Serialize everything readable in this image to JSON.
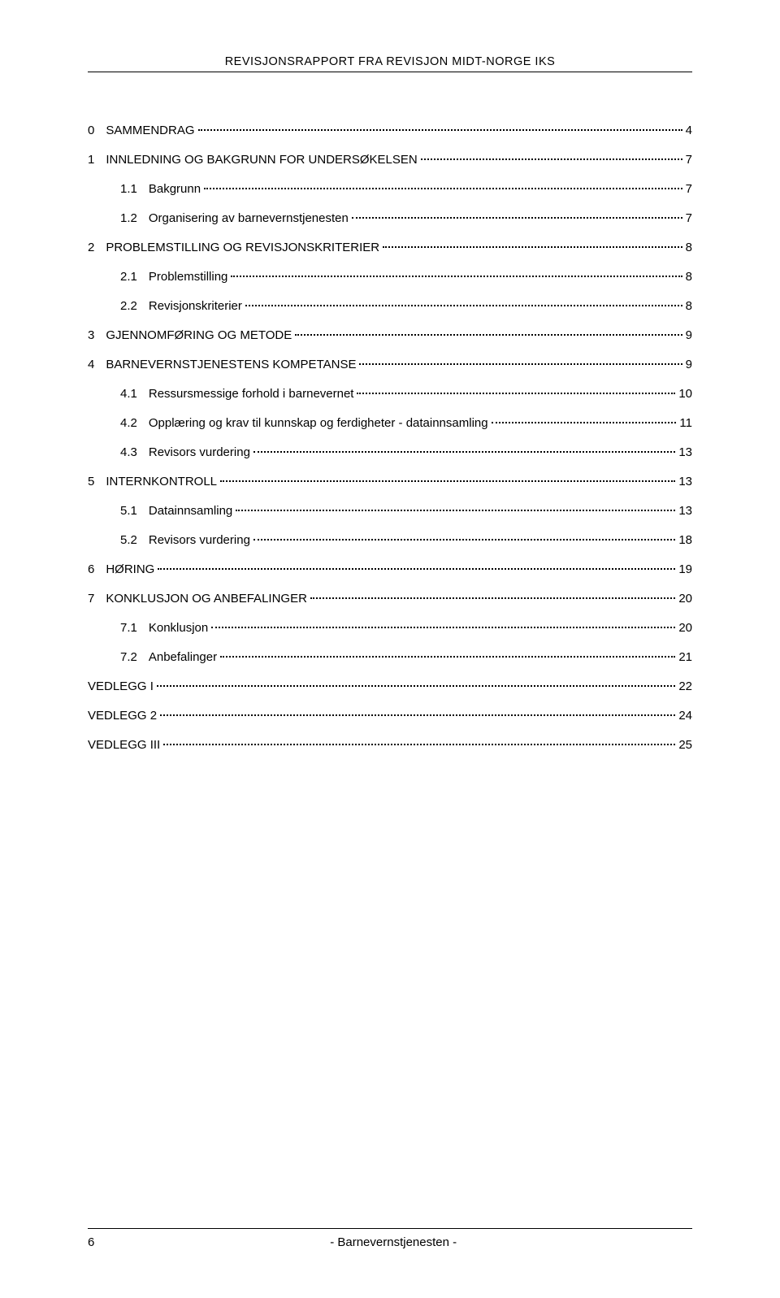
{
  "header": "REVISJONSRAPPORT FRA REVISJON MIDT-NORGE IKS",
  "toc": [
    {
      "level": 0,
      "num": "0",
      "title": "SAMMENDRAG",
      "page": "4"
    },
    {
      "level": 0,
      "num": "1",
      "title": "INNLEDNING OG BAKGRUNN FOR UNDERSØKELSEN",
      "page": "7"
    },
    {
      "level": 1,
      "num": "1.1",
      "title": "Bakgrunn",
      "page": "7"
    },
    {
      "level": 1,
      "num": "1.2",
      "title": "Organisering av barnevernstjenesten",
      "page": "7"
    },
    {
      "level": 0,
      "num": "2",
      "title": "PROBLEMSTILLING OG REVISJONSKRITERIER",
      "page": "8"
    },
    {
      "level": 1,
      "num": "2.1",
      "title": "Problemstilling",
      "page": "8"
    },
    {
      "level": 1,
      "num": "2.2",
      "title": "Revisjonskriterier",
      "page": "8"
    },
    {
      "level": 0,
      "num": "3",
      "title": "GJENNOMFØRING OG METODE",
      "page": "9"
    },
    {
      "level": 0,
      "num": "4",
      "title": "BARNEVERNSTJENESTENS KOMPETANSE",
      "page": "9"
    },
    {
      "level": 1,
      "num": "4.1",
      "title": "Ressursmessige forhold i barnevernet",
      "page": "10"
    },
    {
      "level": 1,
      "num": "4.2",
      "title": "Opplæring og krav til kunnskap og ferdigheter - datainnsamling",
      "page": "11"
    },
    {
      "level": 1,
      "num": "4.3",
      "title": "Revisors vurdering",
      "page": "13"
    },
    {
      "level": 0,
      "num": "5",
      "title": "INTERNKONTROLL",
      "page": "13"
    },
    {
      "level": 1,
      "num": "5.1",
      "title": "Datainnsamling",
      "page": "13"
    },
    {
      "level": 1,
      "num": "5.2",
      "title": "Revisors vurdering",
      "page": "18"
    },
    {
      "level": 0,
      "num": "6",
      "title": "HØRING",
      "page": "19"
    },
    {
      "level": 0,
      "num": "7",
      "title": "KONKLUSJON OG ANBEFALINGER",
      "page": "20"
    },
    {
      "level": 1,
      "num": "7.1",
      "title": "Konklusjon",
      "page": "20"
    },
    {
      "level": 1,
      "num": "7.2",
      "title": "Anbefalinger",
      "page": "21"
    },
    {
      "level": 0,
      "num": "",
      "title": "VEDLEGG I",
      "page": "22"
    },
    {
      "level": 0,
      "num": "",
      "title": "VEDLEGG 2",
      "page": "24"
    },
    {
      "level": 0,
      "num": "",
      "title": "VEDLEGG III",
      "page": "25"
    }
  ],
  "footer": {
    "pagenum": "6",
    "text": "- Barnevernstjenesten -"
  },
  "colors": {
    "text": "#000000",
    "background": "#ffffff",
    "leader": "#000000",
    "rule": "#000000"
  },
  "typography": {
    "body_fontsize_pt": 11,
    "header_fontsize_pt": 11,
    "font_family": "Arial"
  }
}
